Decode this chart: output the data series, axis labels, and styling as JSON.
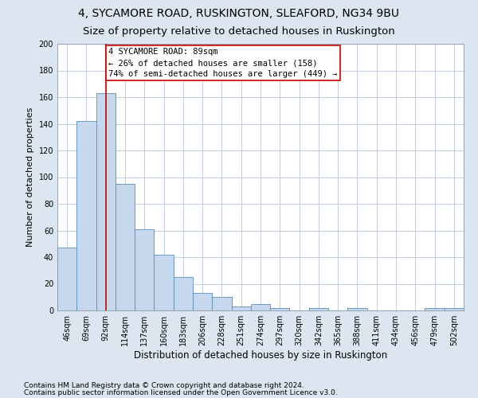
{
  "title1": "4, SYCAMORE ROAD, RUSKINGTON, SLEAFORD, NG34 9BU",
  "title2": "Size of property relative to detached houses in Ruskington",
  "xlabel": "Distribution of detached houses by size in Ruskington",
  "ylabel": "Number of detached properties",
  "categories": [
    "46sqm",
    "69sqm",
    "92sqm",
    "114sqm",
    "137sqm",
    "160sqm",
    "183sqm",
    "206sqm",
    "228sqm",
    "251sqm",
    "274sqm",
    "297sqm",
    "320sqm",
    "342sqm",
    "365sqm",
    "388sqm",
    "411sqm",
    "434sqm",
    "456sqm",
    "479sqm",
    "502sqm"
  ],
  "values": [
    47,
    142,
    163,
    95,
    61,
    42,
    25,
    13,
    10,
    3,
    5,
    2,
    0,
    2,
    0,
    2,
    0,
    0,
    0,
    2,
    2
  ],
  "bar_color": "#c5d8ed",
  "bar_edge_color": "#5b8db8",
  "line_color": "#cc0000",
  "annotation_line1": "4 SYCAMORE ROAD: 89sqm",
  "annotation_line2": "← 26% of detached houses are smaller (158)",
  "annotation_line3": "74% of semi-detached houses are larger (449) →",
  "annotation_box_color": "#cc0000",
  "annotation_bg": "#ffffff",
  "vline_position": 2.0,
  "ylim": [
    0,
    200
  ],
  "yticks": [
    0,
    20,
    40,
    60,
    80,
    100,
    120,
    140,
    160,
    180,
    200
  ],
  "footnote1": "Contains HM Land Registry data © Crown copyright and database right 2024.",
  "footnote2": "Contains public sector information licensed under the Open Government Licence v3.0.",
  "bg_color": "#dce6f0",
  "plot_bg_color": "#ffffff",
  "title1_fontsize": 10,
  "title2_fontsize": 9.5,
  "xlabel_fontsize": 8.5,
  "ylabel_fontsize": 8,
  "tick_fontsize": 7,
  "footnote_fontsize": 6.5,
  "annotation_fontsize": 7.5
}
